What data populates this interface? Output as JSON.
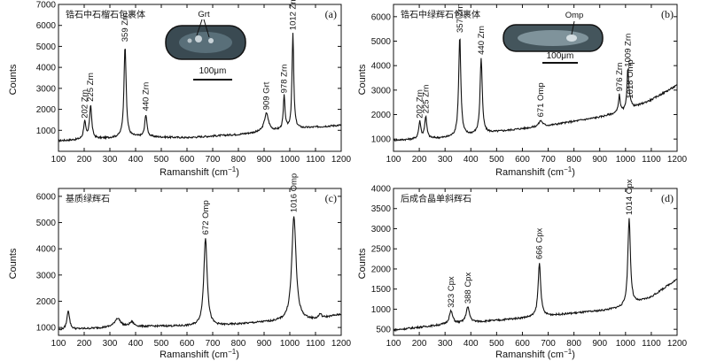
{
  "figure": {
    "panels": [
      {
        "letter": "(a)",
        "title": "锆石中石榴石包裹体",
        "inset": {
          "label": "Grt",
          "scale": "100μm"
        },
        "ylabel": "Counts",
        "xlabel": "Ramanshift (cm",
        "xlabel_sup": "−1",
        "xlabel_end": ")"
      },
      {
        "letter": "(b)",
        "title": "锆石中绿辉石包裹体",
        "inset": {
          "label": "Omp",
          "scale": "100μm"
        },
        "ylabel": "Counts",
        "xlabel": "Ramanshift (cm",
        "xlabel_sup": "−1",
        "xlabel_end": ")"
      },
      {
        "letter": "(c)",
        "title": "基质绿辉石",
        "ylabel": "Counts",
        "xlabel": "Ramanshift (cm",
        "xlabel_sup": "−1",
        "xlabel_end": ")"
      },
      {
        "letter": "(d)",
        "title": "后成合晶单斜辉石",
        "ylabel": "Counts",
        "xlabel": "Ramanshift (cm",
        "xlabel_sup": "−1",
        "xlabel_end": ")"
      }
    ]
  },
  "chart_data": [
    {
      "type": "line",
      "title": "锆石中石榴石包裹体",
      "xlabel": "Ramanshift (cm−1)",
      "ylabel": "Counts",
      "xlim": [
        100,
        1200
      ],
      "ylim": [
        0,
        7000
      ],
      "xticks": [
        100,
        200,
        300,
        400,
        500,
        600,
        700,
        800,
        900,
        1000,
        1100,
        1200
      ],
      "yticks": [
        1000,
        2000,
        3000,
        4000,
        5000,
        6000,
        7000
      ],
      "baseline": [
        [
          100,
          500
        ],
        [
          400,
          700
        ],
        [
          600,
          650
        ],
        [
          800,
          800
        ],
        [
          1000,
          1050
        ],
        [
          1200,
          1250
        ]
      ],
      "peaks": [
        {
          "x": 202,
          "y": 1400,
          "label": "202 Zrn",
          "w": 5
        },
        {
          "x": 225,
          "y": 2200,
          "label": "225 Zrn",
          "w": 5
        },
        {
          "x": 359,
          "y": 5050,
          "label": "359 Zrn",
          "w": 5
        },
        {
          "x": 440,
          "y": 1750,
          "label": "440 Zrn",
          "w": 5
        },
        {
          "x": 909,
          "y": 1800,
          "label": "909 Grt",
          "w": 10
        },
        {
          "x": 978,
          "y": 2600,
          "label": "978 Zrn",
          "w": 4
        },
        {
          "x": 1012,
          "y": 5600,
          "label": "1012 Zrn",
          "w": 4
        }
      ]
    },
    {
      "type": "line",
      "title": "锆石中绿辉石包裹体",
      "xlabel": "Ramanshift (cm−1)",
      "ylabel": "Counts",
      "xlim": [
        100,
        1200
      ],
      "ylim": [
        500,
        6500
      ],
      "xticks": [
        100,
        200,
        300,
        400,
        500,
        600,
        700,
        800,
        900,
        1000,
        1100,
        1200
      ],
      "yticks": [
        1000,
        2000,
        3000,
        4000,
        5000,
        6000
      ],
      "baseline": [
        [
          100,
          950
        ],
        [
          300,
          1050
        ],
        [
          500,
          1300
        ],
        [
          700,
          1550
        ],
        [
          900,
          1900
        ],
        [
          1000,
          2150
        ],
        [
          1100,
          2600
        ],
        [
          1200,
          3200
        ]
      ],
      "peaks": [
        {
          "x": 202,
          "y": 1700,
          "label": "202 Zrn",
          "w": 5
        },
        {
          "x": 225,
          "y": 1900,
          "label": "225 Zrn",
          "w": 5
        },
        {
          "x": 357,
          "y": 5200,
          "label": "357 Zrn",
          "w": 5
        },
        {
          "x": 440,
          "y": 4300,
          "label": "440 Zrn",
          "w": 5
        },
        {
          "x": 671,
          "y": 1750,
          "label": "671 Omp",
          "w": 9
        },
        {
          "x": 976,
          "y": 2800,
          "label": "976 Zrn",
          "w": 4
        },
        {
          "x": 1009,
          "y": 3800,
          "label": "1009 Zrn",
          "w": 4
        },
        {
          "x": 1018,
          "y": 2500,
          "label": "1018 Omp",
          "w": 6
        }
      ]
    },
    {
      "type": "line",
      "title": "基质绿辉石",
      "xlabel": "Ramanshift (cm−1)",
      "ylabel": "Counts",
      "xlim": [
        100,
        1200
      ],
      "ylim": [
        700,
        6300
      ],
      "xticks": [
        100,
        200,
        300,
        400,
        500,
        600,
        700,
        800,
        900,
        1000,
        1100,
        1200
      ],
      "yticks": [
        1000,
        2000,
        3000,
        4000,
        5000,
        6000
      ],
      "baseline": [
        [
          100,
          900
        ],
        [
          300,
          1000
        ],
        [
          500,
          1050
        ],
        [
          700,
          1050
        ],
        [
          900,
          1200
        ],
        [
          1100,
          1300
        ],
        [
          1200,
          1500
        ]
      ],
      "peaks": [
        {
          "x": 138,
          "y": 1650,
          "label": "",
          "w": 6
        },
        {
          "x": 330,
          "y": 1350,
          "label": "",
          "w": 14
        },
        {
          "x": 385,
          "y": 1200,
          "label": "",
          "w": 10
        },
        {
          "x": 672,
          "y": 4400,
          "label": "672 Omp",
          "w": 8
        },
        {
          "x": 1016,
          "y": 5250,
          "label": "1016 Omp",
          "w": 10
        },
        {
          "x": 1118,
          "y": 1500,
          "label": "",
          "w": 6
        }
      ]
    },
    {
      "type": "line",
      "title": "后成合晶单斜辉石",
      "xlabel": "Ramanshift (cm−1)",
      "ylabel": "Counts",
      "xlim": [
        100,
        1200
      ],
      "ylim": [
        350,
        4000
      ],
      "xticks": [
        100,
        200,
        300,
        400,
        500,
        600,
        700,
        800,
        900,
        1000,
        1100,
        1200
      ],
      "yticks": [
        500,
        1000,
        1500,
        2000,
        2500,
        3000,
        3500,
        4000
      ],
      "baseline": [
        [
          100,
          480
        ],
        [
          300,
          620
        ],
        [
          500,
          720
        ],
        [
          700,
          840
        ],
        [
          900,
          960
        ],
        [
          1000,
          1050
        ],
        [
          1100,
          1300
        ],
        [
          1200,
          1750
        ]
      ],
      "peaks": [
        {
          "x": 323,
          "y": 950,
          "label": "323 Cpx",
          "w": 8
        },
        {
          "x": 388,
          "y": 1050,
          "label": "388 Cpx",
          "w": 8
        },
        {
          "x": 666,
          "y": 2150,
          "label": "666 Cpx",
          "w": 6
        },
        {
          "x": 1014,
          "y": 3250,
          "label": "1014 Cpx",
          "w": 6
        }
      ]
    }
  ]
}
